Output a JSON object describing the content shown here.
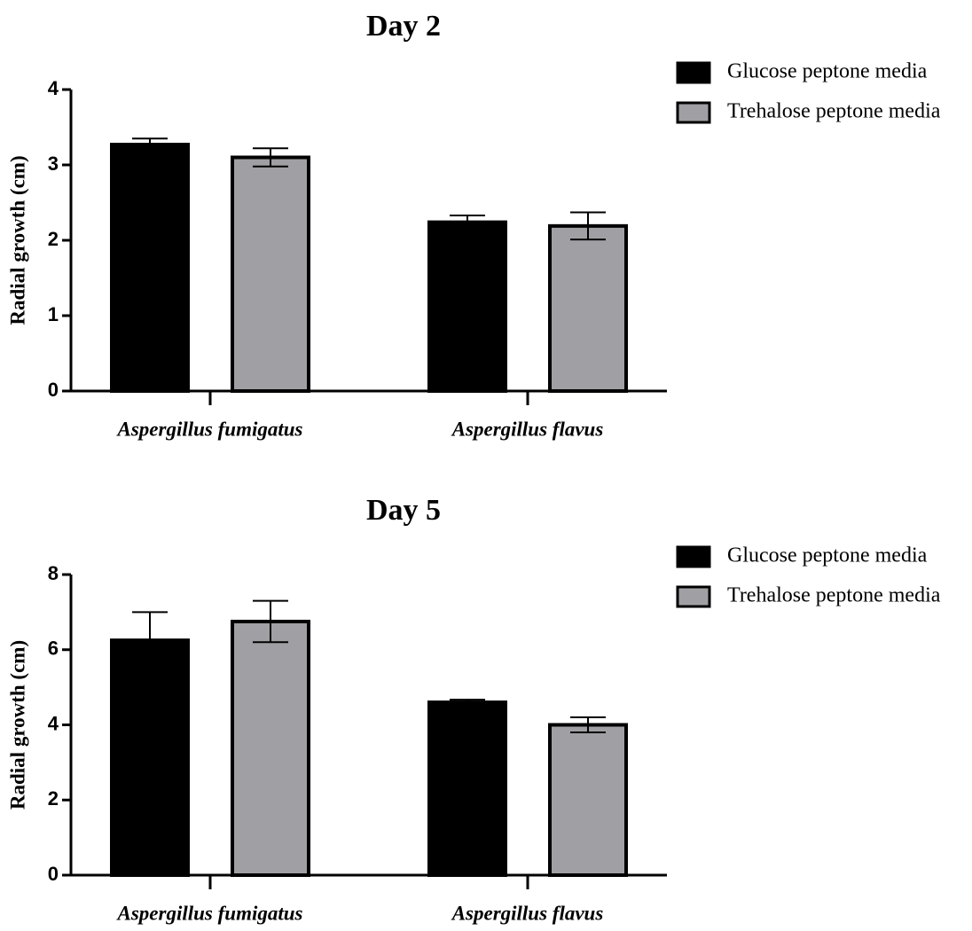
{
  "chart_data": [
    {
      "type": "bar",
      "title": "Day 2",
      "ylabel": "Radial growth (cm)",
      "categories": [
        "Aspergillus fumigatus",
        "Aspergillus flavus"
      ],
      "series": [
        {
          "name": "Glucose peptone media",
          "color": "#000000",
          "values": [
            3.27,
            2.24
          ],
          "errors": [
            0.08,
            0.09
          ]
        },
        {
          "name": "Trehalose peptone media",
          "color": "#a0a0a4",
          "values": [
            3.1,
            2.19
          ],
          "errors": [
            0.12,
            0.18
          ]
        }
      ],
      "ylim": [
        0,
        4
      ],
      "yticks": [
        0,
        1,
        2,
        3,
        4
      ]
    },
    {
      "type": "bar",
      "title": "Day 5",
      "ylabel": "Radial growth (cm)",
      "categories": [
        "Aspergillus fumigatus",
        "Aspergillus flavus"
      ],
      "series": [
        {
          "name": "Glucose peptone media",
          "color": "#000000",
          "values": [
            6.25,
            4.6
          ],
          "errors": [
            0.75,
            0.07
          ]
        },
        {
          "name": "Trehalose peptone media",
          "color": "#a0a0a4",
          "values": [
            6.75,
            4.0
          ],
          "errors": [
            0.55,
            0.2
          ]
        }
      ],
      "ylim": [
        0,
        8
      ],
      "yticks": [
        0,
        2,
        4,
        6,
        8
      ]
    }
  ]
}
